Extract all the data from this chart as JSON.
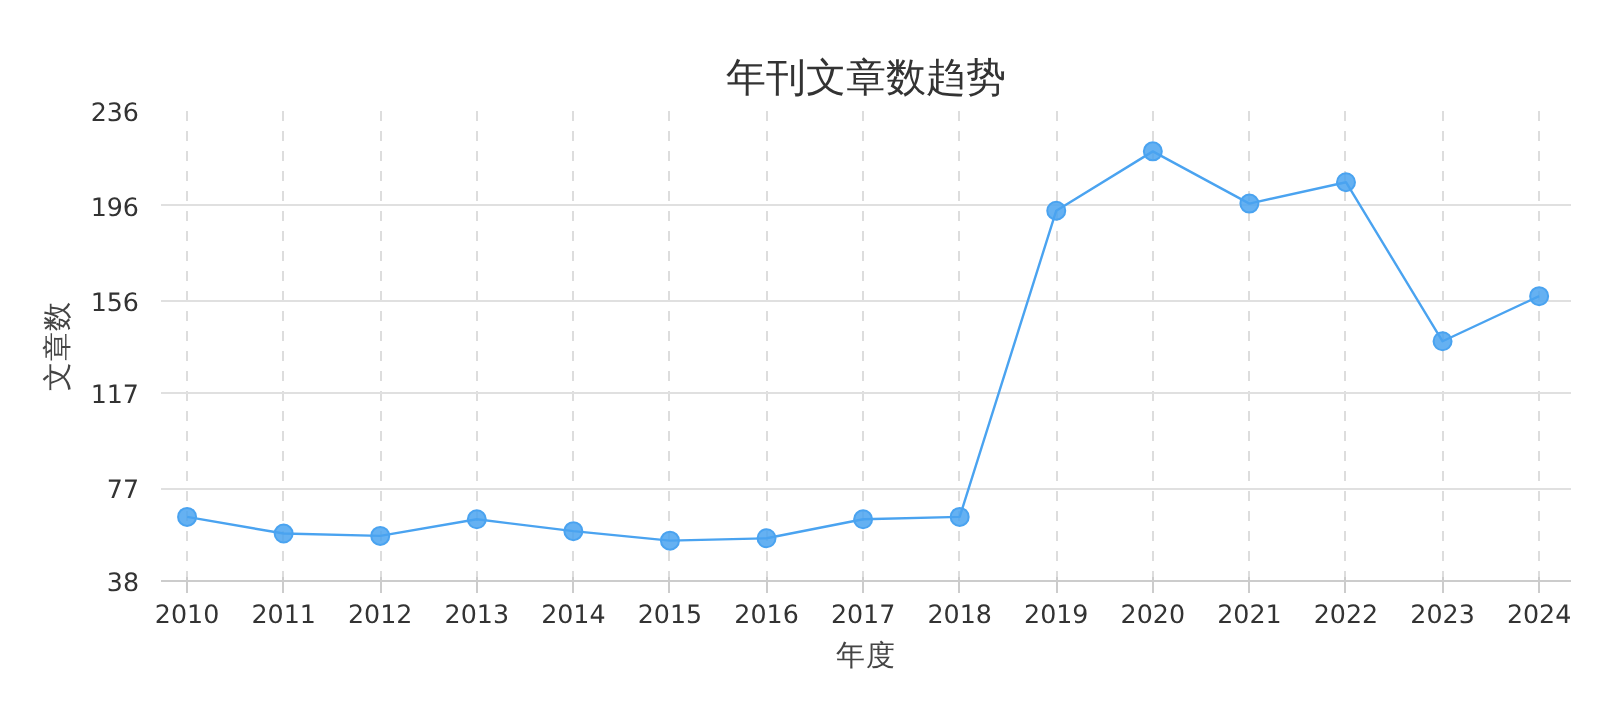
{
  "chart_data": {
    "type": "line",
    "title": "年刊文章数趋势",
    "xlabel": "年度",
    "ylabel": "文章数",
    "categories": [
      "2010",
      "2011",
      "2012",
      "2013",
      "2014",
      "2015",
      "2016",
      "2017",
      "2018",
      "2019",
      "2020",
      "2021",
      "2022",
      "2023",
      "2024"
    ],
    "series": [
      {
        "color": "#4aa3f0",
        "values": [
          65,
          58,
          57,
          64,
          59,
          55,
          56,
          64,
          65,
          194,
          219,
          197,
          206,
          139,
          158
        ]
      }
    ],
    "ylim": [
      38,
      236
    ],
    "yticks": [
      38,
      77,
      117,
      156,
      196,
      236
    ],
    "grid": true,
    "marker": "circle",
    "line_style": "solid"
  }
}
